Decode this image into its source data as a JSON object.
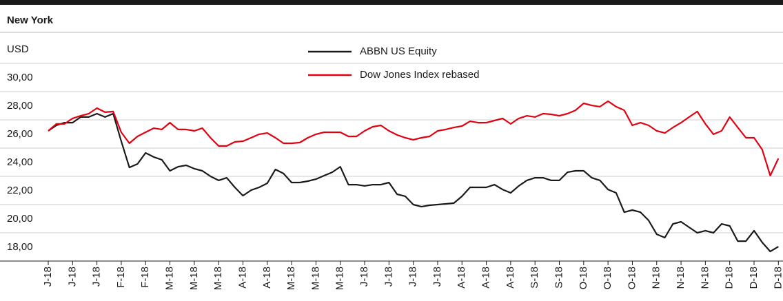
{
  "chart_data": {
    "type": "line",
    "title": "New York",
    "y_label": "USD",
    "categories": [
      "J-18",
      null,
      null,
      "J-18",
      null,
      null,
      "J-18",
      null,
      null,
      "F-18",
      null,
      null,
      "F-18",
      null,
      null,
      "M-18",
      null,
      null,
      "M-18",
      null,
      null,
      "M-18",
      null,
      null,
      "A-18",
      null,
      null,
      "A-18",
      null,
      null,
      "M-18",
      null,
      null,
      "M-18",
      null,
      null,
      "M-18",
      null,
      null,
      "J-18",
      null,
      null,
      "J-18",
      null,
      null,
      "J-18",
      null,
      null,
      "J-18",
      null,
      null,
      "A-18",
      null,
      null,
      "A-18",
      null,
      null,
      "A-18",
      null,
      null,
      "S-18",
      null,
      null,
      "S-18",
      null,
      null,
      "O-18",
      null,
      null,
      "O-18",
      null,
      null,
      "O-18",
      null,
      null,
      "N-18",
      null,
      null,
      "N-18",
      null,
      null,
      "N-18",
      null,
      null,
      "D-18",
      null,
      null,
      "D-18",
      null,
      null,
      "D-18"
    ],
    "series": [
      {
        "name": "ABBN US Equity",
        "color": "#1a1a1a",
        "values": [
          27.22,
          27.61,
          27.8,
          27.8,
          28.2,
          28.2,
          28.44,
          28.2,
          28.44,
          26.49,
          24.63,
          24.88,
          25.66,
          25.37,
          25.17,
          24.39,
          24.68,
          24.78,
          24.54,
          24.39,
          24.0,
          23.71,
          23.9,
          23.22,
          22.63,
          23.02,
          23.22,
          23.51,
          24.49,
          24.2,
          23.56,
          23.56,
          23.66,
          23.8,
          24.05,
          24.29,
          24.68,
          23.41,
          23.41,
          23.32,
          23.41,
          23.41,
          23.56,
          22.73,
          22.59,
          22.0,
          21.85,
          21.95,
          22.0,
          22.05,
          22.1,
          22.59,
          23.22,
          23.22,
          23.22,
          23.41,
          23.07,
          22.83,
          23.32,
          23.71,
          23.9,
          23.9,
          23.71,
          23.71,
          24.29,
          24.39,
          24.39,
          23.9,
          23.71,
          23.07,
          22.83,
          21.46,
          21.61,
          21.46,
          20.88,
          19.9,
          19.66,
          20.63,
          20.78,
          20.39,
          20.0,
          20.15,
          20.0,
          20.63,
          20.49,
          19.41,
          19.41,
          20.15,
          19.32,
          18.68,
          19.02
        ]
      },
      {
        "name": "Dow Jones Index rebased",
        "color": "#e3000f",
        "values": [
          27.22,
          27.71,
          27.71,
          28.1,
          28.29,
          28.44,
          28.83,
          28.54,
          28.59,
          27.12,
          26.34,
          26.83,
          27.12,
          27.41,
          27.32,
          27.8,
          27.32,
          27.32,
          27.22,
          27.41,
          26.73,
          26.15,
          26.15,
          26.44,
          26.49,
          26.73,
          26.98,
          27.07,
          26.73,
          26.34,
          26.34,
          26.39,
          26.73,
          26.98,
          27.12,
          27.12,
          27.12,
          26.83,
          26.83,
          27.22,
          27.51,
          27.61,
          27.22,
          26.93,
          26.73,
          26.59,
          26.73,
          26.83,
          27.22,
          27.32,
          27.46,
          27.56,
          27.9,
          27.8,
          27.8,
          27.95,
          28.1,
          27.71,
          28.1,
          28.29,
          28.2,
          28.44,
          28.39,
          28.29,
          28.44,
          28.68,
          29.17,
          29.02,
          28.93,
          29.32,
          28.93,
          28.68,
          27.61,
          27.8,
          27.61,
          27.22,
          27.07,
          27.46,
          27.8,
          28.2,
          28.59,
          27.71,
          26.98,
          27.22,
          28.2,
          27.46,
          26.73,
          26.73,
          25.9,
          24.05,
          25.27
        ]
      }
    ],
    "ylim": [
      18,
      32
    ],
    "yticks": [
      {
        "value": 18,
        "label": "18,00"
      },
      {
        "value": 20,
        "label": "20,00"
      },
      {
        "value": 22,
        "label": "22,00"
      },
      {
        "value": 24,
        "label": "24,00"
      },
      {
        "value": 26,
        "label": "26,00"
      },
      {
        "value": 28,
        "label": "28,00"
      },
      {
        "value": 30,
        "label": "30,00"
      }
    ],
    "grid": true
  }
}
